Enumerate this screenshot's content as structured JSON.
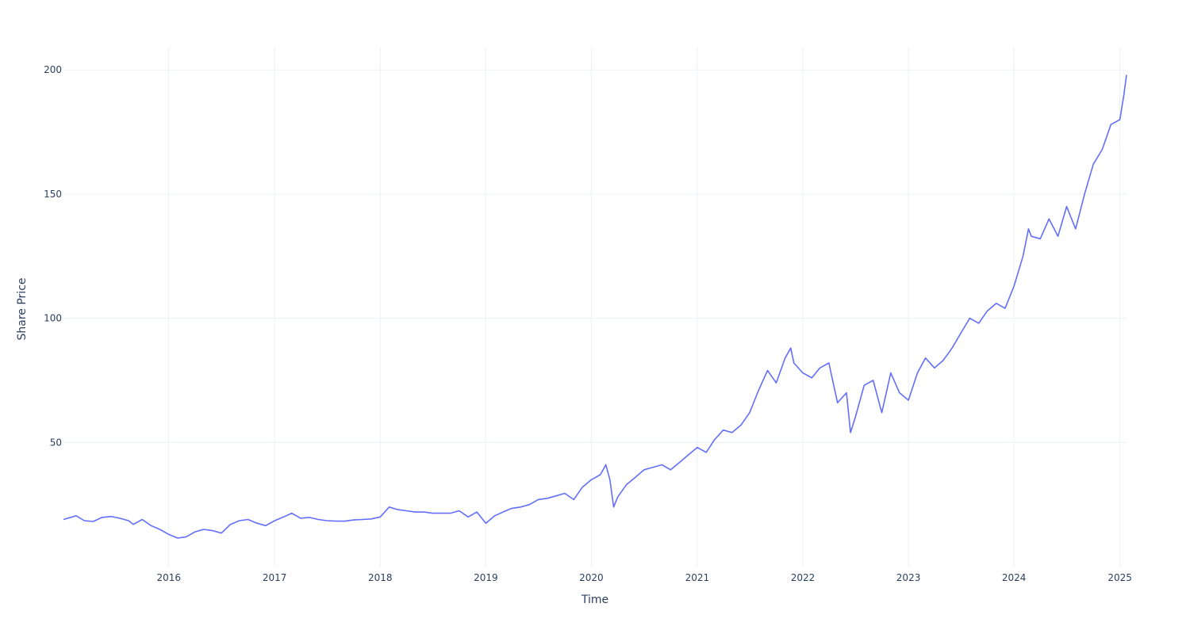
{
  "chart_data": {
    "type": "line",
    "title": "",
    "xlabel": "Time",
    "ylabel": "Share Price",
    "xlim": [
      "2015-01-02",
      "2025-01-24"
    ],
    "ylim": [
      0,
      209
    ],
    "x_ticks": [
      "2016",
      "2017",
      "2018",
      "2019",
      "2020",
      "2021",
      "2022",
      "2023",
      "2024",
      "2025"
    ],
    "y_ticks": [
      50,
      100,
      150,
      200
    ],
    "grid": true,
    "legend": "none",
    "series": [
      {
        "color": "#636efa",
        "points": [
          [
            "2015-01-02",
            19
          ],
          [
            "2015-02-15",
            20.5
          ],
          [
            "2015-03-15",
            18.5
          ],
          [
            "2015-04-15",
            18.2
          ],
          [
            "2015-05-15",
            19.8
          ],
          [
            "2015-06-15",
            20.2
          ],
          [
            "2015-07-15",
            19.5
          ],
          [
            "2015-08-15",
            18.5
          ],
          [
            "2015-09-01",
            17
          ],
          [
            "2015-10-01",
            19
          ],
          [
            "2015-11-01",
            16.5
          ],
          [
            "2015-12-01",
            15
          ],
          [
            "2016-01-01",
            13
          ],
          [
            "2016-02-01",
            11.5
          ],
          [
            "2016-03-01",
            12
          ],
          [
            "2016-04-01",
            14
          ],
          [
            "2016-05-01",
            15
          ],
          [
            "2016-06-01",
            14.5
          ],
          [
            "2016-07-01",
            13.5
          ],
          [
            "2016-08-01",
            17
          ],
          [
            "2016-09-01",
            18.5
          ],
          [
            "2016-10-01",
            19
          ],
          [
            "2016-11-01",
            17.5
          ],
          [
            "2016-12-01",
            16.5
          ],
          [
            "2017-01-01",
            18.5
          ],
          [
            "2017-02-01",
            20
          ],
          [
            "2017-03-01",
            21.5
          ],
          [
            "2017-04-01",
            19.5
          ],
          [
            "2017-05-01",
            19.8
          ],
          [
            "2017-06-01",
            19
          ],
          [
            "2017-07-01",
            18.5
          ],
          [
            "2017-08-01",
            18.3
          ],
          [
            "2017-09-01",
            18.3
          ],
          [
            "2017-10-01",
            18.8
          ],
          [
            "2017-11-01",
            19
          ],
          [
            "2017-12-01",
            19.2
          ],
          [
            "2018-01-01",
            20
          ],
          [
            "2018-02-01",
            24
          ],
          [
            "2018-03-01",
            23
          ],
          [
            "2018-04-01",
            22.5
          ],
          [
            "2018-05-01",
            22
          ],
          [
            "2018-06-01",
            22
          ],
          [
            "2018-07-01",
            21.5
          ],
          [
            "2018-08-01",
            21.5
          ],
          [
            "2018-09-01",
            21.5
          ],
          [
            "2018-10-01",
            22.5
          ],
          [
            "2018-11-01",
            20
          ],
          [
            "2018-12-01",
            22
          ],
          [
            "2019-01-01",
            17.5
          ],
          [
            "2019-02-01",
            20.5
          ],
          [
            "2019-03-01",
            22
          ],
          [
            "2019-04-01",
            23.5
          ],
          [
            "2019-05-01",
            24
          ],
          [
            "2019-06-01",
            25
          ],
          [
            "2019-07-01",
            27
          ],
          [
            "2019-08-01",
            27.5
          ],
          [
            "2019-09-01",
            28.5
          ],
          [
            "2019-10-01",
            29.5
          ],
          [
            "2019-11-01",
            27
          ],
          [
            "2019-12-01",
            32
          ],
          [
            "2020-01-01",
            35
          ],
          [
            "2020-02-01",
            37
          ],
          [
            "2020-02-20",
            41
          ],
          [
            "2020-03-05",
            35
          ],
          [
            "2020-03-18",
            24
          ],
          [
            "2020-04-01",
            28
          ],
          [
            "2020-05-01",
            33
          ],
          [
            "2020-06-01",
            36
          ],
          [
            "2020-07-01",
            39
          ],
          [
            "2020-08-01",
            40
          ],
          [
            "2020-09-01",
            41
          ],
          [
            "2020-10-01",
            39
          ],
          [
            "2020-11-01",
            42
          ],
          [
            "2020-12-01",
            45
          ],
          [
            "2021-01-01",
            48
          ],
          [
            "2021-02-01",
            46
          ],
          [
            "2021-03-01",
            51
          ],
          [
            "2021-04-01",
            55
          ],
          [
            "2021-05-01",
            54
          ],
          [
            "2021-06-01",
            57
          ],
          [
            "2021-07-01",
            62
          ],
          [
            "2021-08-01",
            71
          ],
          [
            "2021-09-01",
            79
          ],
          [
            "2021-10-01",
            74
          ],
          [
            "2021-11-01",
            84
          ],
          [
            "2021-11-20",
            88
          ],
          [
            "2021-12-01",
            82
          ],
          [
            "2022-01-01",
            78
          ],
          [
            "2022-02-01",
            76
          ],
          [
            "2022-03-01",
            80
          ],
          [
            "2022-04-01",
            82
          ],
          [
            "2022-05-01",
            66
          ],
          [
            "2022-06-01",
            70
          ],
          [
            "2022-06-15",
            54
          ],
          [
            "2022-07-01",
            60
          ],
          [
            "2022-08-01",
            73
          ],
          [
            "2022-09-01",
            75
          ],
          [
            "2022-10-01",
            62
          ],
          [
            "2022-11-01",
            78
          ],
          [
            "2022-12-01",
            70
          ],
          [
            "2023-01-01",
            67
          ],
          [
            "2023-02-01",
            78
          ],
          [
            "2023-03-01",
            84
          ],
          [
            "2023-04-01",
            80
          ],
          [
            "2023-05-01",
            83
          ],
          [
            "2023-06-01",
            88
          ],
          [
            "2023-07-01",
            94
          ],
          [
            "2023-08-01",
            100
          ],
          [
            "2023-09-01",
            98
          ],
          [
            "2023-10-01",
            103
          ],
          [
            "2023-11-01",
            106
          ],
          [
            "2023-12-01",
            104
          ],
          [
            "2024-01-01",
            113
          ],
          [
            "2024-02-01",
            125
          ],
          [
            "2024-02-20",
            136
          ],
          [
            "2024-03-01",
            133
          ],
          [
            "2024-04-01",
            132
          ],
          [
            "2024-05-01",
            140
          ],
          [
            "2024-06-01",
            133
          ],
          [
            "2024-07-01",
            145
          ],
          [
            "2024-08-01",
            136
          ],
          [
            "2024-09-01",
            150
          ],
          [
            "2024-10-01",
            162
          ],
          [
            "2024-11-01",
            168
          ],
          [
            "2024-12-01",
            178
          ],
          [
            "2025-01-01",
            180
          ],
          [
            "2025-01-15",
            190
          ],
          [
            "2025-01-24",
            198
          ]
        ]
      }
    ]
  }
}
